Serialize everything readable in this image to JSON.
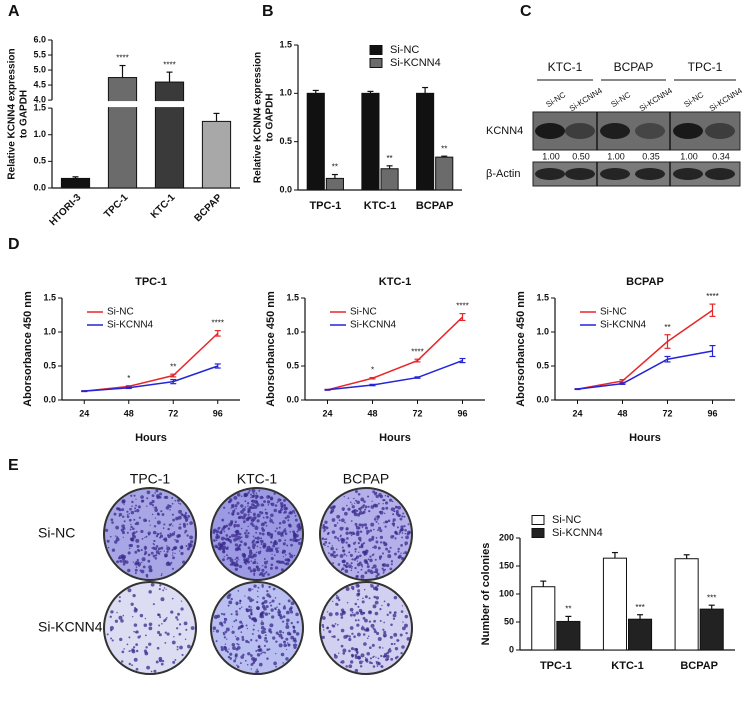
{
  "panels": [
    "A",
    "B",
    "C",
    "D",
    "E"
  ],
  "blot": {
    "groups": [
      "KTC-1",
      "BCPAP",
      "TPC-1"
    ],
    "lanes": [
      "Si-NC",
      "Si-KCNN4",
      "Si-NC",
      "Si-KCNN4",
      "Si-NC",
      "Si-KCNN4"
    ],
    "rows": [
      "KCNN4",
      "β-Actin"
    ],
    "ratios": [
      "1.00",
      "0.50",
      "1.00",
      "0.35",
      "1.00",
      "0.34"
    ]
  },
  "plates": {
    "columns": [
      "TPC-1",
      "KTC-1",
      "BCPAP"
    ],
    "rows": [
      "Si-NC",
      "Si-KCNN4"
    ]
  },
  "chart_data": [
    {
      "type": "bar",
      "ylabel": [
        "Relative KCNN4 expression",
        "to GAPDH"
      ],
      "categories": [
        "HTORI-3",
        "TPC-1",
        "KTC-1",
        "BCPAP"
      ],
      "values": [
        0.18,
        4.75,
        4.6,
        1.25
      ],
      "errors": [
        0.03,
        0.4,
        0.33,
        0.15
      ],
      "colors": [
        "#111111",
        "#6b6b6b",
        "#3a3a3a",
        "#a8a8a8"
      ],
      "annotations": [
        null,
        "****",
        "****",
        "**"
      ],
      "ylim": [
        0,
        6
      ],
      "ybreak": [
        1.5,
        4
      ],
      "yticks": [
        {
          "value": 0,
          "label": "0.0"
        },
        0.5,
        {
          "value": 1,
          "label": "1.0"
        },
        1.5,
        {
          "value": 4,
          "label": "4.0"
        },
        4.5,
        {
          "value": 5,
          "label": "5.0"
        },
        5.5,
        {
          "value": 6,
          "label": "6.0"
        }
      ]
    },
    {
      "type": "bar",
      "ylabel": [
        "Relative KCNN4 expression",
        "to GAPDH"
      ],
      "categories": [
        "TPC-1",
        "KTC-1",
        "BCPAP"
      ],
      "series": [
        {
          "name": "Si-NC",
          "color": "#111111",
          "values": [
            1,
            1,
            1
          ],
          "errors": [
            0.03,
            0.02,
            0.06
          ]
        },
        {
          "name": "Si-KCNN4",
          "color": "#6b6b6b",
          "values": [
            0.12,
            0.22,
            0.34
          ],
          "errors": [
            0.04,
            0.03,
            0.01
          ],
          "annotations": [
            "**",
            "**",
            "**"
          ]
        }
      ],
      "ylim": [
        0,
        1.5
      ],
      "yticks": [
        {
          "value": 0,
          "label": "0.0"
        },
        0.5,
        {
          "value": 1,
          "label": "1.0"
        },
        1.5
      ],
      "legend": "upper right"
    },
    {
      "type": "line",
      "title": "TPC-1",
      "xlabel": "Hours",
      "ylabel": "Aborsorbance 450 nm",
      "x": [
        24,
        48,
        72,
        96
      ],
      "xlim": [
        12,
        108
      ],
      "xticks": [
        24,
        48,
        72,
        96
      ],
      "series": [
        {
          "name": "Si-NC",
          "color": "#e8262a",
          "values": [
            0.13,
            0.2,
            0.36,
            0.98
          ],
          "errors": [
            0.005,
            0.01,
            0.02,
            0.04
          ]
        },
        {
          "name": "Si-KCNN4",
          "color": "#2424d8",
          "values": [
            0.13,
            0.18,
            0.27,
            0.5
          ],
          "errors": [
            0.005,
            0.01,
            0.03,
            0.03
          ]
        }
      ],
      "annotations": [
        null,
        "*",
        "**",
        "****"
      ],
      "ylim": [
        0,
        1.5
      ],
      "yticks": [
        {
          "value": 0,
          "label": "0.0"
        },
        0.5,
        {
          "value": 1,
          "label": "1.0"
        },
        1.5
      ],
      "legend": "upper left"
    },
    {
      "type": "line",
      "title": "KTC-1",
      "xlabel": "Hours",
      "ylabel": "Aborsorbance 450 nm",
      "x": [
        24,
        48,
        72,
        96
      ],
      "xlim": [
        12,
        108
      ],
      "xticks": [
        24,
        48,
        72,
        96
      ],
      "series": [
        {
          "name": "Si-NC",
          "color": "#e8262a",
          "values": [
            0.15,
            0.32,
            0.58,
            1.22
          ],
          "errors": [
            0.005,
            0.01,
            0.02,
            0.05
          ]
        },
        {
          "name": "Si-KCNN4",
          "color": "#2424d8",
          "values": [
            0.15,
            0.22,
            0.33,
            0.58
          ],
          "errors": [
            0.005,
            0.01,
            0.01,
            0.03
          ]
        }
      ],
      "annotations": [
        null,
        "*",
        "****",
        "****"
      ],
      "ylim": [
        0,
        1.5
      ],
      "yticks": [
        {
          "value": 0,
          "label": "0.0"
        },
        0.5,
        {
          "value": 1,
          "label": "1.0"
        },
        1.5
      ],
      "legend": "upper left"
    },
    {
      "type": "line",
      "title": "BCPAP",
      "xlabel": "Hours",
      "ylabel": "Aborsorbance 450 nm",
      "x": [
        24,
        48,
        72,
        96
      ],
      "xlim": [
        12,
        108
      ],
      "xticks": [
        24,
        48,
        72,
        96
      ],
      "series": [
        {
          "name": "Si-NC",
          "color": "#e8262a",
          "values": [
            0.16,
            0.28,
            0.86,
            1.32
          ],
          "errors": [
            0.005,
            0.02,
            0.1,
            0.09
          ]
        },
        {
          "name": "Si-KCNN4",
          "color": "#2424d8",
          "values": [
            0.16,
            0.24,
            0.6,
            0.72
          ],
          "errors": [
            0.005,
            0.01,
            0.04,
            0.08
          ]
        }
      ],
      "annotations": [
        null,
        null,
        "**",
        "****"
      ],
      "ylim": [
        0,
        1.5
      ],
      "yticks": [
        {
          "value": 0,
          "label": "0.0"
        },
        0.5,
        {
          "value": 1,
          "label": "1.0"
        },
        1.5
      ],
      "legend": "upper left"
    },
    {
      "type": "bar",
      "ylabel": "Number of colonies",
      "categories": [
        "TPC-1",
        "KTC-1",
        "BCPAP"
      ],
      "series": [
        {
          "name": "Si-NC",
          "color": "#ffffff",
          "values": [
            113,
            164,
            163
          ],
          "errors": [
            10,
            10,
            7
          ]
        },
        {
          "name": "Si-KCNN4",
          "color": "#222222",
          "values": [
            51,
            55,
            73
          ],
          "errors": [
            9,
            8,
            7
          ],
          "annotations": [
            "**",
            "***",
            "***"
          ]
        }
      ],
      "ylim": [
        0,
        200
      ],
      "yticks": [
        0,
        50,
        100,
        150,
        200
      ],
      "legend": "upper left"
    }
  ]
}
